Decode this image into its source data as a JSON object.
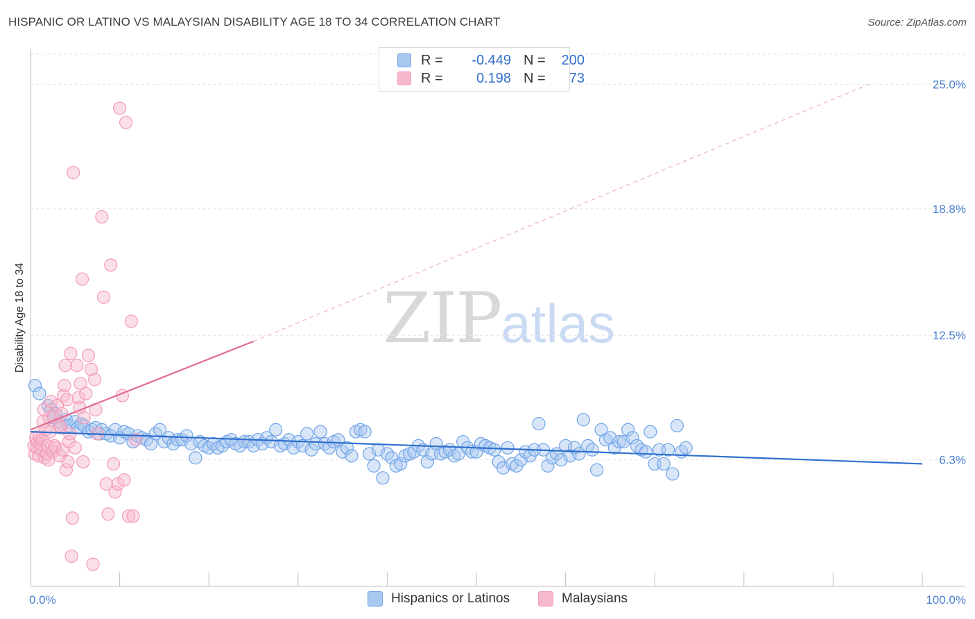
{
  "title": "HISPANIC OR LATINO VS MALAYSIAN DISABILITY AGE 18 TO 34 CORRELATION CHART",
  "source": "Source: ZipAtlas.com",
  "watermark": {
    "zip": "ZIP",
    "atlas": "atlas"
  },
  "legend": {
    "rows": [
      {
        "r_label": "R =",
        "r_value": "-0.449",
        "n_label": "N =",
        "n_value": "200",
        "color": "#a8c8f0"
      },
      {
        "r_label": "R =",
        "r_value": "0.198",
        "n_label": "N =",
        "n_value": "73",
        "color": "#f7b8cc"
      }
    ]
  },
  "bottom_legend": [
    {
      "label": "Hispanics or Latinos",
      "color": "#a8c8f0"
    },
    {
      "label": "Malaysians",
      "color": "#f7b8cc"
    }
  ],
  "chart_data": {
    "type": "scatter",
    "title": "HISPANIC OR LATINO VS MALAYSIAN DISABILITY AGE 18 TO 34 CORRELATION CHART",
    "xlabel": "",
    "ylabel": "Disability Age 18 to 34",
    "xlim": [
      0,
      100
    ],
    "ylim": [
      0,
      26.5
    ],
    "x_tick_labels": [
      "0.0%",
      "100.0%"
    ],
    "y_ticks": [
      6.3,
      12.5,
      18.8,
      25.0
    ],
    "y_tick_labels": [
      "6.3%",
      "12.5%",
      "18.8%",
      "25.0%"
    ],
    "grid": "horizontal dashed",
    "legend_position": "top-center",
    "series": [
      {
        "name": "Hispanics or Latinos",
        "color": "#6fa3e8",
        "trend": {
          "x": [
            0,
            100
          ],
          "y": [
            7.7,
            6.1
          ],
          "style": "solid",
          "color": "#2f6fcd"
        },
        "points": [
          [
            0.5,
            10
          ],
          [
            1,
            9.6
          ],
          [
            2,
            9
          ],
          [
            2.3,
            8.8
          ],
          [
            2.5,
            8.4
          ],
          [
            2.8,
            8.6
          ],
          [
            3.2,
            8.2
          ],
          [
            3.5,
            8.1
          ],
          [
            4,
            8.3
          ],
          [
            4.3,
            8
          ],
          [
            5,
            8.2
          ],
          [
            5.3,
            7.9
          ],
          [
            5.7,
            8.1
          ],
          [
            6,
            8
          ],
          [
            6.5,
            7.7
          ],
          [
            6.9,
            7.8
          ],
          [
            7.3,
            7.9
          ],
          [
            7.7,
            7.6
          ],
          [
            8,
            7.8
          ],
          [
            8.5,
            7.6
          ],
          [
            9,
            7.5
          ],
          [
            9.5,
            7.8
          ],
          [
            10,
            7.4
          ],
          [
            10.5,
            7.7
          ],
          [
            11,
            7.6
          ],
          [
            11.5,
            7.2
          ],
          [
            12,
            7.5
          ],
          [
            12.5,
            7.4
          ],
          [
            13,
            7.3
          ],
          [
            13.5,
            7.1
          ],
          [
            14,
            7.6
          ],
          [
            14.5,
            7.8
          ],
          [
            15,
            7.2
          ],
          [
            15.5,
            7.4
          ],
          [
            16,
            7.1
          ],
          [
            16.5,
            7.3
          ],
          [
            17,
            7.3
          ],
          [
            17.5,
            7.5
          ],
          [
            18,
            7.1
          ],
          [
            18.5,
            6.4
          ],
          [
            19,
            7.2
          ],
          [
            19.5,
            7.0
          ],
          [
            20,
            6.9
          ],
          [
            20.5,
            7.1
          ],
          [
            21,
            6.9
          ],
          [
            21.5,
            7.0
          ],
          [
            22,
            7.2
          ],
          [
            22.5,
            7.3
          ],
          [
            23,
            7.1
          ],
          [
            23.5,
            7.0
          ],
          [
            24,
            7.2
          ],
          [
            24.5,
            7.2
          ],
          [
            25,
            7.0
          ],
          [
            25.5,
            7.3
          ],
          [
            26,
            7.1
          ],
          [
            26.5,
            7.4
          ],
          [
            27,
            7.2
          ],
          [
            27.5,
            7.8
          ],
          [
            28,
            7.0
          ],
          [
            28.5,
            7.1
          ],
          [
            29,
            7.3
          ],
          [
            29.5,
            6.9
          ],
          [
            30,
            7.2
          ],
          [
            30.5,
            7.0
          ],
          [
            31,
            7.6
          ],
          [
            31.5,
            6.8
          ],
          [
            32,
            7.1
          ],
          [
            32.5,
            7.7
          ],
          [
            33,
            7.1
          ],
          [
            33.5,
            6.9
          ],
          [
            34,
            7.2
          ],
          [
            34.5,
            7.3
          ],
          [
            35,
            6.7
          ],
          [
            35.5,
            6.9
          ],
          [
            36,
            6.5
          ],
          [
            36.5,
            7.7
          ],
          [
            37,
            7.8
          ],
          [
            37.5,
            7.7
          ],
          [
            38,
            6.6
          ],
          [
            38.5,
            6.0
          ],
          [
            39,
            6.8
          ],
          [
            39.5,
            5.4
          ],
          [
            40,
            6.6
          ],
          [
            40.5,
            6.4
          ],
          [
            41,
            6.0
          ],
          [
            41.5,
            6.1
          ],
          [
            42,
            6.5
          ],
          [
            42.5,
            6.6
          ],
          [
            43,
            6.7
          ],
          [
            43.5,
            7.0
          ],
          [
            44,
            6.8
          ],
          [
            44.5,
            6.2
          ],
          [
            45,
            6.6
          ],
          [
            45.5,
            7.1
          ],
          [
            46,
            6.6
          ],
          [
            46.5,
            6.7
          ],
          [
            47,
            6.8
          ],
          [
            47.5,
            6.5
          ],
          [
            48,
            6.6
          ],
          [
            48.5,
            7.2
          ],
          [
            49,
            6.9
          ],
          [
            49.5,
            6.7
          ],
          [
            50,
            6.7
          ],
          [
            50.5,
            7.1
          ],
          [
            51,
            7.0
          ],
          [
            51.5,
            6.9
          ],
          [
            52,
            6.8
          ],
          [
            52.5,
            6.2
          ],
          [
            53,
            5.9
          ],
          [
            53.5,
            6.9
          ],
          [
            54,
            6.1
          ],
          [
            54.5,
            6.0
          ],
          [
            55,
            6.3
          ],
          [
            55.5,
            6.7
          ],
          [
            56,
            6.5
          ],
          [
            56.5,
            6.8
          ],
          [
            57,
            8.1
          ],
          [
            57.5,
            6.8
          ],
          [
            58,
            6.0
          ],
          [
            58.5,
            6.4
          ],
          [
            59,
            6.6
          ],
          [
            59.5,
            6.3
          ],
          [
            60,
            7.0
          ],
          [
            60.5,
            6.5
          ],
          [
            61,
            6.9
          ],
          [
            61.5,
            6.6
          ],
          [
            62,
            8.3
          ],
          [
            62.5,
            7.0
          ],
          [
            63,
            6.8
          ],
          [
            63.5,
            5.8
          ],
          [
            64,
            7.8
          ],
          [
            64.5,
            7.3
          ],
          [
            65,
            7.4
          ],
          [
            65.5,
            6.9
          ],
          [
            66,
            7.2
          ],
          [
            66.5,
            7.2
          ],
          [
            67,
            7.8
          ],
          [
            67.5,
            7.4
          ],
          [
            68,
            7.0
          ],
          [
            68.5,
            6.8
          ],
          [
            69,
            6.7
          ],
          [
            69.5,
            7.7
          ],
          [
            70,
            6.1
          ],
          [
            70.5,
            6.8
          ],
          [
            71,
            6.1
          ],
          [
            71.5,
            6.8
          ],
          [
            72,
            5.6
          ],
          [
            72.5,
            8.0
          ],
          [
            73,
            6.7
          ],
          [
            73.5,
            6.9
          ]
        ]
      },
      {
        "name": "Malaysians",
        "color": "#f29bb8",
        "trend": {
          "x": [
            0,
            25
          ],
          "y": [
            7.8,
            12.2
          ],
          "style": "solid",
          "color": "#e06a93"
        },
        "trend_extension": {
          "x": [
            25,
            94
          ],
          "y": [
            12.2,
            25
          ],
          "style": "dashed",
          "color": "#e8a3ba"
        },
        "points": [
          [
            0.4,
            7
          ],
          [
            0.5,
            6.6
          ],
          [
            0.6,
            7.4
          ],
          [
            0.7,
            6.9
          ],
          [
            0.8,
            7.2
          ],
          [
            0.9,
            6.5
          ],
          [
            1,
            7.5
          ],
          [
            1.1,
            7.1
          ],
          [
            1.2,
            6.8
          ],
          [
            1.3,
            7.3
          ],
          [
            1.4,
            8.2
          ],
          [
            1.5,
            8.8
          ],
          [
            1.6,
            6.4
          ],
          [
            1.7,
            7.8
          ],
          [
            1.8,
            6.6
          ],
          [
            1.9,
            7.0
          ],
          [
            2,
            6.3
          ],
          [
            2.1,
            8.4
          ],
          [
            2.2,
            7.7
          ],
          [
            2.3,
            9.2
          ],
          [
            2.5,
            6.7
          ],
          [
            2.6,
            8.5
          ],
          [
            2.7,
            7.0
          ],
          [
            2.8,
            6.9
          ],
          [
            3,
            9.0
          ],
          [
            3.2,
            8.0
          ],
          [
            3.3,
            6.5
          ],
          [
            3.4,
            7.9
          ],
          [
            3.5,
            8.6
          ],
          [
            3.6,
            6.8
          ],
          [
            3.7,
            9.5
          ],
          [
            3.8,
            10.0
          ],
          [
            3.9,
            11.0
          ],
          [
            4,
            5.8
          ],
          [
            4.1,
            9.3
          ],
          [
            4.2,
            6.2
          ],
          [
            4.3,
            7.2
          ],
          [
            4.4,
            7.6
          ],
          [
            4.5,
            11.6
          ],
          [
            4.6,
            1.5
          ],
          [
            4.7,
            3.4
          ],
          [
            4.8,
            20.6
          ],
          [
            5,
            6.9
          ],
          [
            5.2,
            11.0
          ],
          [
            5.4,
            9.4
          ],
          [
            5.5,
            8.9
          ],
          [
            5.6,
            10.1
          ],
          [
            5.8,
            15.3
          ],
          [
            5.9,
            6.2
          ],
          [
            6,
            8.4
          ],
          [
            6.2,
            9.6
          ],
          [
            6.5,
            11.5
          ],
          [
            6.8,
            10.8
          ],
          [
            7,
            1.1
          ],
          [
            7.2,
            10.3
          ],
          [
            7.3,
            8.8
          ],
          [
            7.5,
            7.6
          ],
          [
            8,
            18.4
          ],
          [
            8.2,
            14.4
          ],
          [
            8.5,
            5.1
          ],
          [
            8.7,
            3.6
          ],
          [
            9,
            16.0
          ],
          [
            9.3,
            6.1
          ],
          [
            9.5,
            4.7
          ],
          [
            9.8,
            5.1
          ],
          [
            10,
            23.8
          ],
          [
            10.3,
            9.5
          ],
          [
            10.5,
            5.3
          ],
          [
            10.7,
            23.1
          ],
          [
            11,
            3.5
          ],
          [
            11.3,
            13.2
          ],
          [
            11.5,
            3.5
          ],
          [
            11.8,
            7.3
          ]
        ]
      }
    ]
  }
}
